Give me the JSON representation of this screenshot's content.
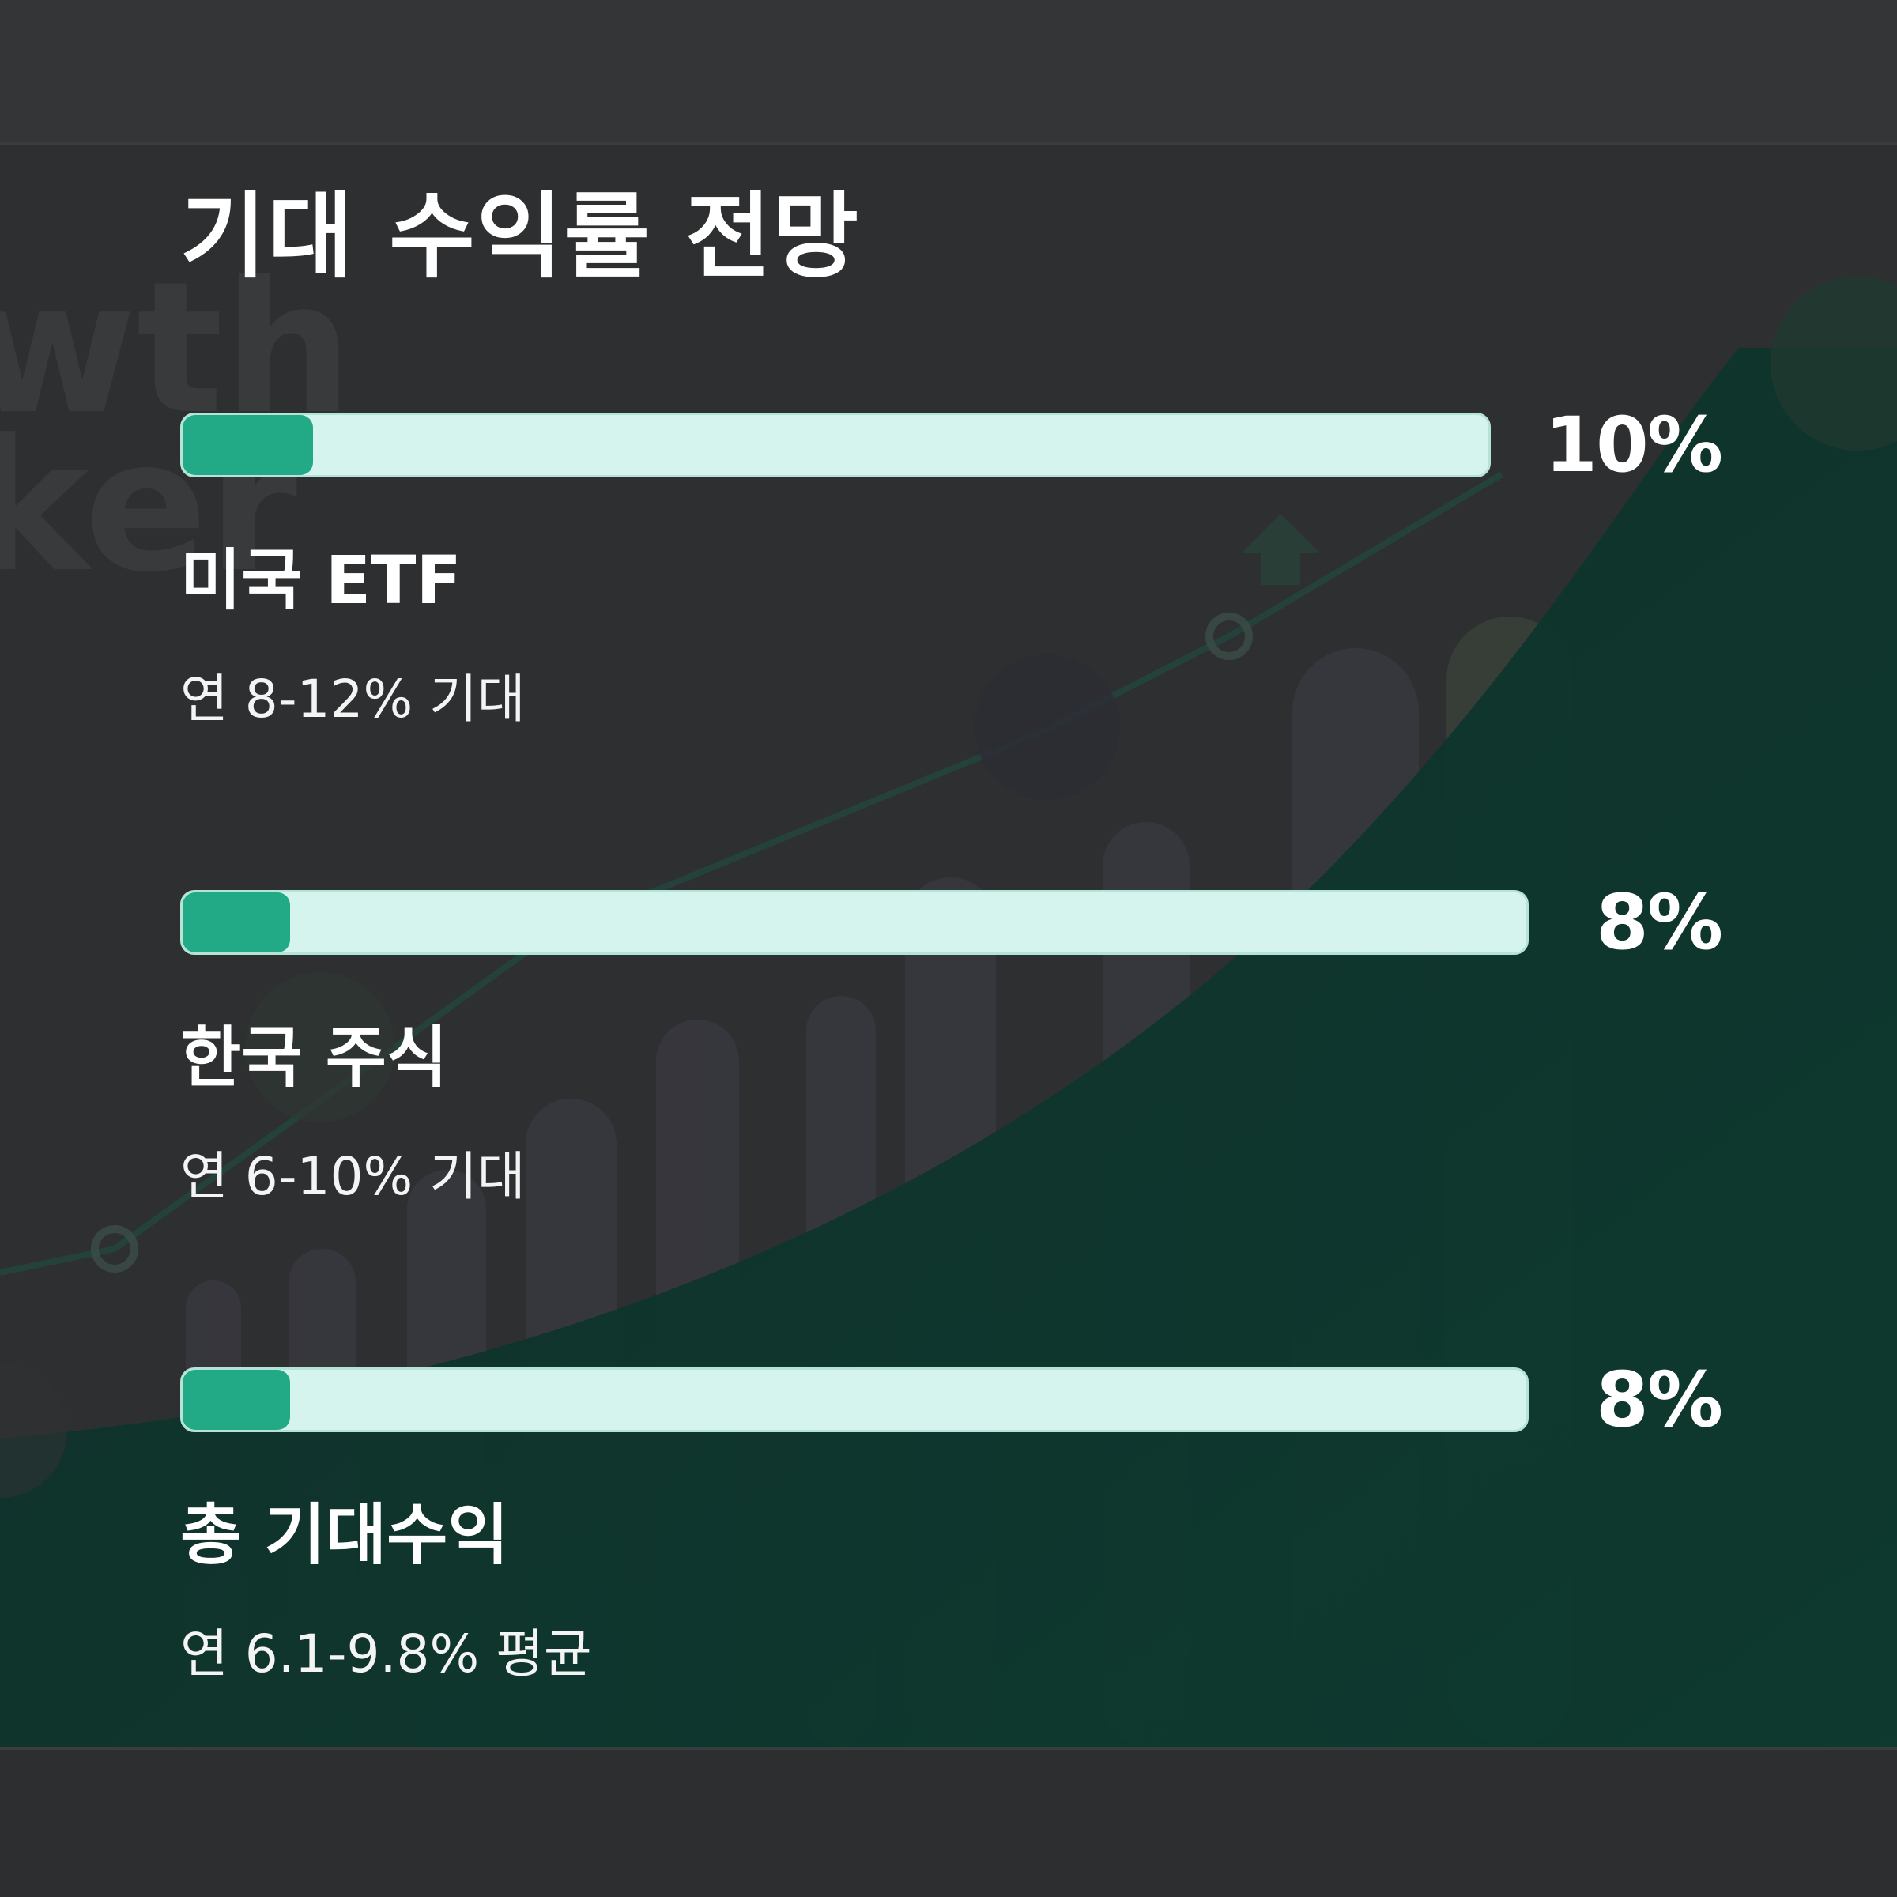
{
  "title": "기대 수익률 전망",
  "colors": {
    "fill": "#22a986",
    "track": "#d4f4ed",
    "text": "#ffffff"
  },
  "chart_data": {
    "type": "bar",
    "categories": [
      "미국 ETF",
      "한국 주식",
      "총 기대수익"
    ],
    "values": [
      10,
      8,
      8
    ],
    "value_labels": [
      "10%",
      "8%",
      "8%"
    ],
    "descriptions": [
      "연 8-12% 기대",
      "연 6-10% 기대",
      "연 6.1-9.8% 평균"
    ],
    "ylim": [
      0,
      100
    ],
    "orientation": "horizontal"
  },
  "rows": [
    {
      "label": "미국 ETF",
      "value_text": "10%",
      "desc": "연 8-12% 기대"
    },
    {
      "label": "한국 주식",
      "value_text": "8%",
      "desc": "연 6-10% 기대"
    },
    {
      "label": "총 기대수익",
      "value_text": "8%",
      "desc": "연 6.1-9.8% 평균"
    }
  ]
}
